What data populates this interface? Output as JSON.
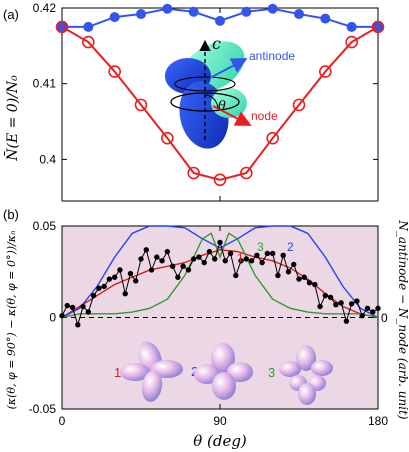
{
  "chart_data": [
    {
      "panel_label": "(a)",
      "type": "line",
      "ylabel": "N̄(E = 0)/N₀",
      "ylim": [
        0.3945,
        0.42
      ],
      "yticks": [
        0.4,
        0.41,
        0.42
      ],
      "xlim": [
        0,
        180
      ],
      "colors": {
        "blue": "#3355ee",
        "red": "#e82020"
      },
      "series": [
        {
          "label": "antinode",
          "color_key": "blue",
          "x": [
            0,
            15,
            30,
            45,
            60,
            75,
            90,
            105,
            120,
            135,
            150,
            165,
            180
          ],
          "values": [
            0.4175,
            0.4175,
            0.4188,
            0.4192,
            0.4199,
            0.4195,
            0.4183,
            0.4195,
            0.4199,
            0.4192,
            0.4186,
            0.4175,
            0.4175
          ]
        },
        {
          "label": "node",
          "color_key": "red",
          "x": [
            0,
            15,
            30,
            45,
            60,
            75,
            90,
            105,
            120,
            135,
            150,
            165,
            180
          ],
          "values": [
            0.4175,
            0.4155,
            0.4116,
            0.4072,
            0.4028,
            0.3982,
            0.3973,
            0.3982,
            0.4028,
            0.4072,
            0.4116,
            0.4155,
            0.4175
          ]
        }
      ],
      "inset": {
        "axis_label": "c",
        "angle_label": "θ",
        "antinode_label": "antinode",
        "node_label": "node"
      }
    },
    {
      "panel_label": "(b)",
      "type": "line",
      "xlabel": "θ (deg)",
      "ylabel_left": "(κ(θ, φ = 90°) − κ(θ, φ = 0°))/κₙ",
      "ylabel_right": "N_antinode − N_node (arb. unit)",
      "ylim": [
        -0.05,
        0.05
      ],
      "yticks": [
        -0.05,
        0,
        0.05
      ],
      "right_tick": "0",
      "xticks": [
        0,
        90,
        180
      ],
      "xlim": [
        0,
        180
      ],
      "colors": {
        "red": "#cc2222",
        "blue": "#2244ee",
        "green": "#339933",
        "data": "#000000",
        "background": "#ecd8e4"
      },
      "points": {
        "x": [
          0,
          3,
          6,
          9,
          12,
          15,
          18,
          21,
          24,
          27,
          30,
          33,
          36,
          39,
          42,
          45,
          48,
          51,
          54,
          57,
          60,
          63,
          66,
          69,
          72,
          75,
          78,
          81,
          84,
          87,
          90,
          93,
          96,
          99,
          102,
          105,
          108,
          111,
          114,
          117,
          120,
          123,
          126,
          129,
          132,
          135,
          138,
          141,
          144,
          147,
          150,
          153,
          156,
          159,
          162,
          165,
          168,
          171,
          174,
          177,
          180
        ],
        "values": [
          0.001,
          0.0065,
          0.0055,
          -0.004,
          0.006,
          0.003,
          0.012,
          0.016,
          0.017,
          0.021,
          0.022,
          0.026,
          0.013,
          0.024,
          0.02,
          0.032,
          0.037,
          0.026,
          0.033,
          0.031,
          0.036,
          0.028,
          0.022,
          0.028,
          0.026,
          0.032,
          0.033,
          0.03,
          0.036,
          0.032,
          0.041,
          0.031,
          0.035,
          0.023,
          0.031,
          0.032,
          0.031,
          0.034,
          0.03,
          0.035,
          0.035,
          0.023,
          0.034,
          0.025,
          0.029,
          0.021,
          0.022,
          0.019,
          0.018,
          0.006,
          0.012,
          0.011,
          0.007,
          0.008,
          -0.002,
          0.0075,
          0.009,
          0.001,
          0.005,
          0.003,
          0.005
        ]
      },
      "series": [
        {
          "name": "1",
          "color_key": "red",
          "x": [
            0,
            10,
            20,
            30,
            40,
            50,
            60,
            70,
            80,
            90,
            100,
            110,
            120,
            130,
            140,
            150,
            160,
            170,
            180
          ],
          "values": [
            0,
            0.006,
            0.012,
            0.018,
            0.022,
            0.026,
            0.028,
            0.03,
            0.034,
            0.037,
            0.036,
            0.033,
            0.031,
            0.027,
            0.021,
            0.013,
            0.006,
            0.002,
            0
          ]
        },
        {
          "name": "2",
          "color_key": "blue",
          "x": [
            0,
            10,
            20,
            30,
            40,
            50,
            60,
            70,
            80,
            90,
            100,
            110,
            120,
            130,
            140,
            150,
            160,
            170,
            180
          ],
          "values": [
            0,
            0.005,
            0.017,
            0.033,
            0.046,
            0.05,
            0.05,
            0.049,
            0.043,
            0.038,
            0.043,
            0.049,
            0.05,
            0.05,
            0.046,
            0.033,
            0.017,
            0.005,
            0
          ]
        },
        {
          "name": "3",
          "color_key": "green",
          "x": [
            0,
            10,
            20,
            30,
            40,
            50,
            60,
            70,
            80,
            85,
            90,
            95,
            100,
            110,
            120,
            130,
            140,
            150,
            160,
            170,
            180
          ],
          "values": [
            0,
            0.002,
            0.002,
            0.002,
            0.003,
            0.005,
            0.01,
            0.023,
            0.043,
            0.046,
            0.033,
            0.046,
            0.043,
            0.023,
            0.01,
            0.005,
            0.003,
            0.002,
            0.002,
            0.002,
            0
          ]
        }
      ],
      "insets": [
        "1",
        "2",
        "3"
      ]
    }
  ]
}
